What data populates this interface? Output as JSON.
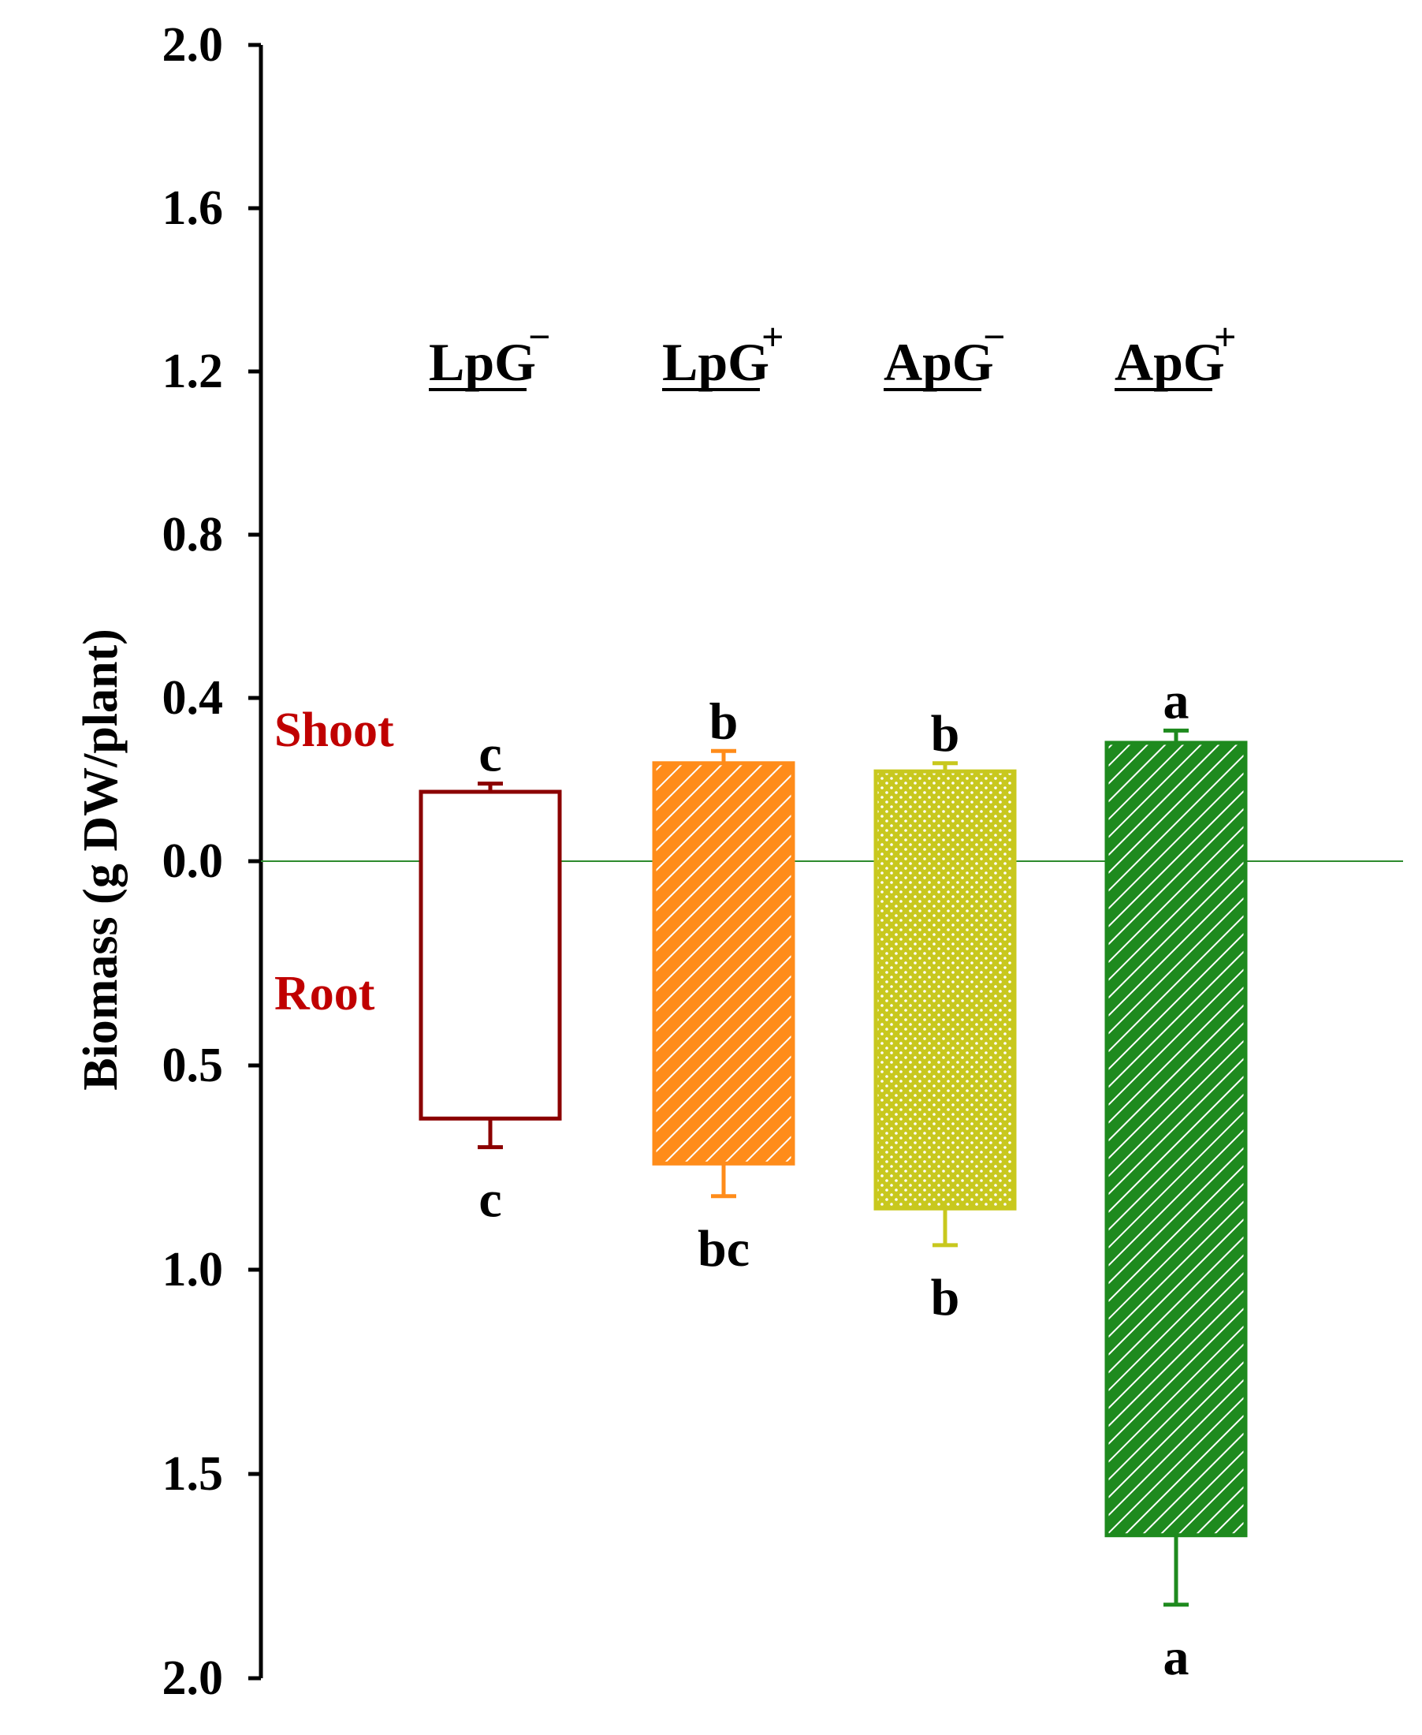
{
  "chart_data": {
    "type": "bar",
    "ylabel": "Biomass (g DW/plant)",
    "shoot_axis": {
      "range": [
        0,
        2.0
      ],
      "ticks": [
        "0.0",
        "0.4",
        "0.8",
        "1.2",
        "1.6",
        "2.0"
      ],
      "ticks_values": [
        0,
        0.4,
        0.8,
        1.2,
        1.6,
        2.0
      ]
    },
    "root_axis": {
      "range": [
        0,
        2.0
      ],
      "ticks": [
        "0.5",
        "1.0",
        "1.5",
        "2.0"
      ],
      "ticks_values": [
        0.5,
        1.0,
        1.5,
        2.0
      ]
    },
    "side_labels": {
      "shoot": "Shoot",
      "root": "Root"
    },
    "categories": [
      {
        "name": "LpG",
        "sup": "−"
      },
      {
        "name": "LpG",
        "sup": "+"
      },
      {
        "name": "ApG",
        "sup": "−"
      },
      {
        "name": "ApG",
        "sup": "+"
      }
    ],
    "series": [
      {
        "name": "Shoot",
        "values": [
          0.17,
          0.24,
          0.22,
          0.29
        ],
        "errors": [
          0.02,
          0.03,
          0.02,
          0.03
        ],
        "letters": [
          "c",
          "b",
          "b",
          "a"
        ]
      },
      {
        "name": "Root",
        "values": [
          0.63,
          0.74,
          0.85,
          1.65
        ],
        "errors": [
          0.07,
          0.08,
          0.09,
          0.17
        ],
        "letters": [
          "c",
          "bc",
          "b",
          "a"
        ]
      }
    ],
    "colors": [
      "#8b0000",
      "#ff8c1a",
      "#c8c81e",
      "#1e8a1e"
    ],
    "patterns": [
      "none",
      "diagonal",
      "dots",
      "diagonal-dense"
    ],
    "zero_line_color": "#2e8b2e"
  }
}
